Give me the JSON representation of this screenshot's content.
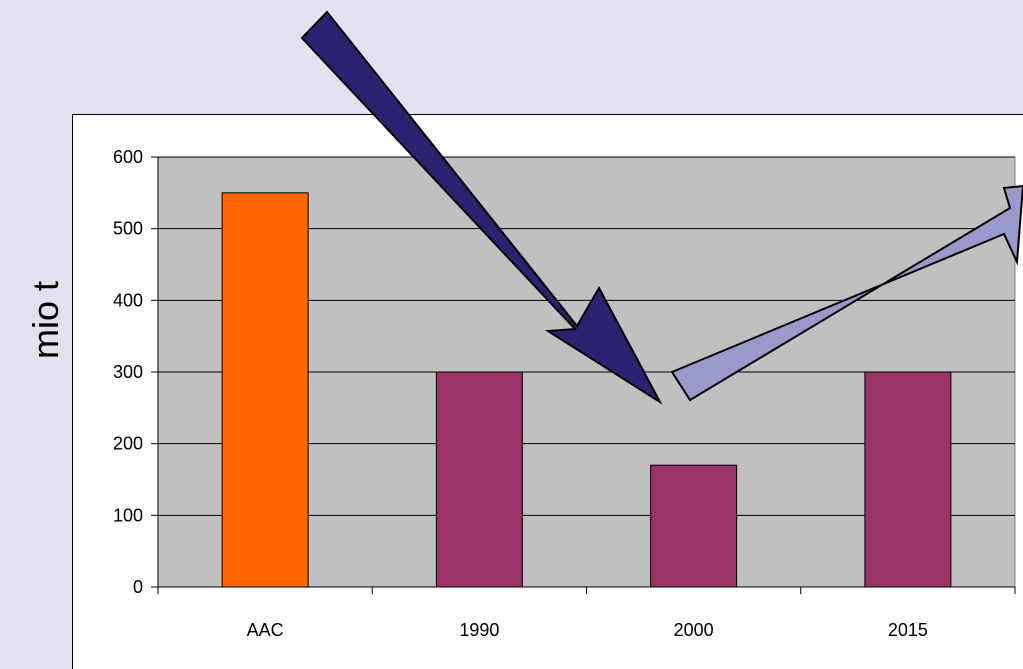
{
  "chart_data": {
    "type": "bar",
    "categories": [
      "AAC",
      "1990",
      "2000",
      "2015"
    ],
    "values": [
      550,
      300,
      170,
      300
    ],
    "bar_colors": [
      "#ff6600",
      "#993366",
      "#993366",
      "#993366"
    ],
    "ylabel": "mio t",
    "xlabel": "",
    "title": "",
    "ylim": [
      0,
      600
    ],
    "yticks": [
      0,
      100,
      200,
      300,
      400,
      500,
      600
    ],
    "grid": true,
    "plot_background": "#c0c0c0",
    "annotations": [
      {
        "kind": "arrow",
        "direction": "down-right",
        "color": "#2a2372",
        "target_category": "2000"
      },
      {
        "kind": "arrow",
        "direction": "up-right",
        "color": "#9999cc",
        "from_category": "2000"
      }
    ]
  },
  "colors": {
    "slide_background": "#e3e0f0",
    "chart_area": "#ffffff"
  }
}
